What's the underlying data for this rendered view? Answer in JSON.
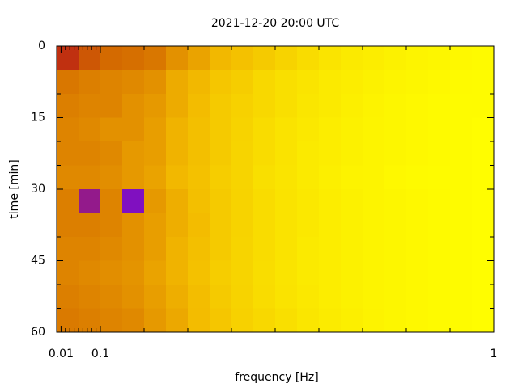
{
  "chart_data": {
    "type": "heatmap",
    "title": "2021-12-20 20:00 UTC",
    "xlabel": "frequency [Hz]",
    "ylabel": "time [min]",
    "xlim": [
      0,
      1
    ],
    "ylim": [
      0,
      60
    ],
    "y_inverted": true,
    "xticks": [
      0.01,
      0.1,
      1
    ],
    "xminor_ticks": [
      0.02,
      0.03,
      0.04,
      0.05,
      0.06,
      0.07,
      0.08,
      0.09,
      0.2,
      0.3,
      0.4,
      0.5,
      0.6,
      0.7,
      0.8,
      0.9
    ],
    "yticks": [
      0,
      15,
      30,
      45,
      60
    ],
    "yminor_ticks": [
      5,
      10,
      20,
      25,
      35,
      40,
      50,
      55
    ],
    "xbins": [
      0,
      0.05,
      0.1,
      0.15,
      0.2,
      0.25,
      0.3,
      0.35,
      0.4,
      0.45,
      0.5,
      0.55,
      0.6,
      0.65,
      0.7,
      0.75,
      0.8,
      0.85,
      0.9,
      0.95,
      1
    ],
    "ybins": [
      0,
      5,
      10,
      15,
      20,
      25,
      30,
      35,
      40,
      45,
      50,
      55,
      60
    ],
    "colormap": [
      [
        0,
        "#ffff00"
      ],
      [
        40,
        "#f2b800"
      ],
      [
        70,
        "#d46a00"
      ],
      [
        85,
        "#c03010"
      ],
      [
        95,
        "#8010c0"
      ],
      [
        100,
        "#000000"
      ]
    ],
    "z": [
      [
        85,
        75,
        70,
        68,
        65,
        55,
        48,
        40,
        35,
        30,
        25,
        20,
        15,
        12,
        10,
        8,
        6,
        5,
        4,
        3
      ],
      [
        65,
        62,
        60,
        58,
        55,
        45,
        40,
        32,
        28,
        22,
        18,
        15,
        12,
        10,
        8,
        6,
        5,
        4,
        3,
        2
      ],
      [
        62,
        60,
        60,
        55,
        52,
        45,
        38,
        30,
        26,
        22,
        18,
        14,
        12,
        9,
        7,
        5,
        4,
        3,
        2,
        2
      ],
      [
        60,
        58,
        55,
        55,
        50,
        42,
        36,
        30,
        25,
        20,
        16,
        13,
        10,
        8,
        6,
        5,
        4,
        3,
        2,
        1
      ],
      [
        60,
        60,
        58,
        52,
        50,
        42,
        36,
        30,
        24,
        20,
        16,
        12,
        10,
        8,
        6,
        5,
        4,
        3,
        2,
        1
      ],
      [
        58,
        58,
        56,
        52,
        48,
        40,
        35,
        28,
        24,
        18,
        15,
        12,
        9,
        7,
        6,
        4,
        3,
        2,
        2,
        1
      ],
      [
        62,
        92,
        60,
        95,
        52,
        44,
        36,
        30,
        25,
        20,
        16,
        13,
        10,
        8,
        6,
        5,
        4,
        3,
        2,
        1
      ],
      [
        62,
        62,
        60,
        55,
        50,
        44,
        38,
        30,
        25,
        20,
        16,
        13,
        10,
        8,
        6,
        5,
        4,
        3,
        2,
        1
      ],
      [
        60,
        60,
        58,
        55,
        50,
        42,
        36,
        30,
        24,
        20,
        16,
        12,
        10,
        8,
        6,
        5,
        4,
        3,
        2,
        1
      ],
      [
        60,
        58,
        56,
        54,
        48,
        42,
        35,
        28,
        24,
        19,
        15,
        12,
        10,
        8,
        6,
        5,
        4,
        3,
        2,
        1
      ],
      [
        62,
        60,
        58,
        55,
        50,
        44,
        37,
        30,
        25,
        20,
        16,
        13,
        10,
        8,
        6,
        5,
        4,
        3,
        2,
        1
      ],
      [
        64,
        62,
        60,
        58,
        52,
        46,
        38,
        32,
        26,
        22,
        18,
        14,
        11,
        9,
        7,
        5,
        4,
        3,
        2,
        1
      ]
    ]
  }
}
